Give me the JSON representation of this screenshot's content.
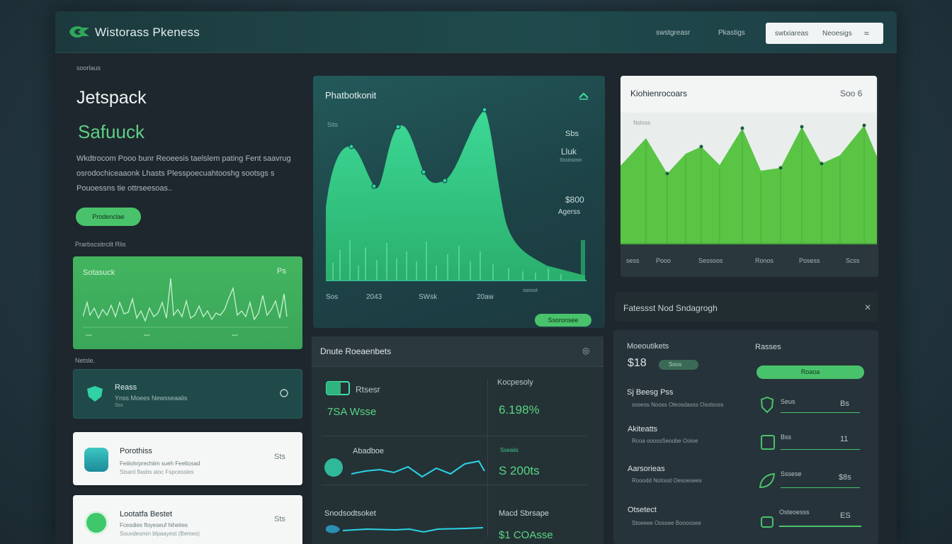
{
  "header": {
    "brand": "Wistorass Pkeness",
    "nav": [
      "swstgreasr",
      "Pkastigs"
    ],
    "search": {
      "left": "swtxiareas",
      "right": "Neoesigs",
      "icon_glyph": "≈"
    }
  },
  "hero": {
    "eyebrow": "soorlaus",
    "title": "Jetspack",
    "subtitle": "Safuuck",
    "paragraph": "Wkdtrocom Pooo bunr Reoeesis taelslem pating Fent saavrug osrodochiceaaonk Lhasts Plesspoecuahtooshg sootsgs s Pouoessns tie ottrseesoas..",
    "button": "Prodenclae"
  },
  "left_cards": {
    "section_label": "Prarbscsitrcilt Rlis",
    "green_card": {
      "title": "Sotasuck",
      "value": "Ps"
    },
    "teal_section_label": "Netsle.",
    "teal_card": {
      "title": "Reass",
      "desc": "Ynss Moees Newsseaalis",
      "sub": "Sss"
    },
    "white1": {
      "title": "Porothiss",
      "desc": "Feiiiohrprechiim sueh Feeltosad",
      "desc2": "Stsanl flasbs aioc Fspcessles",
      "value": "Sts"
    },
    "white2": {
      "title": "Lootatfa Bestet",
      "desc": "Fcesdies floyeseuf hiheties",
      "desc2": "Souvdesmin blpaayest (Bemes)",
      "value": "Sts"
    }
  },
  "main_chart": {
    "title": "Phatbotkonit",
    "y_label": "Sits",
    "right_values": [
      "Sbs",
      "Lluk",
      "Sssissosn",
      "$800",
      "Agerss",
      "ssissst"
    ],
    "x_labels": [
      "Sos",
      "2043",
      "SWsk",
      "20aw"
    ],
    "button": "Ssoronsee"
  },
  "right_chart": {
    "title": "Kiohienrocoars",
    "value": "Soo 6",
    "y_label": "Nstsss",
    "x_labels": [
      "sess",
      "Pooo",
      "Sessoos",
      "Ronos",
      "Posess",
      "Scss"
    ]
  },
  "right_mid": {
    "title": "Fatessst Nod Sndagrogh",
    "icon_glyph": "✕"
  },
  "bottom_mid": {
    "title": "Dnute Roeaenbets",
    "icon_glyph": "◎",
    "row1": {
      "icon_label": "Rtsesr",
      "value": "7SA Wsse",
      "right_label": "Kocpesoly",
      "right_value": "6.198%"
    },
    "row2": {
      "label": "Abadboe",
      "right_label": "Sseaiis",
      "right_value": "S 200ts"
    },
    "row3": {
      "label": "Snodsodtsoket",
      "right_label": "Macd Sbrsape",
      "right_value": "$1 COAsse"
    }
  },
  "bottom_right": {
    "col1_label": "Moeoutikets",
    "col1_value": "$18",
    "col1_pill": "Soos",
    "col2_label": "Rasses",
    "col2_button": "Roaoa",
    "rows": [
      {
        "title": "Sj Beesg Pss",
        "desc": "ssseos Nooss Oleosdasss Osotsoss",
        "icon_label": "Seus",
        "value": "Bs"
      },
      {
        "title": "Akiteatts",
        "desc": "Rcoa ooossSeoobe Ooioe",
        "icon_label": "Bss",
        "value": "11"
      },
      {
        "title": "Aarsorieas",
        "desc": "Rooodd Notood Oesoesees",
        "icon_label": "Sssese",
        "value": "$8s"
      },
      {
        "title": "Otsetect",
        "desc": "Stoeeee Oossee Boooosee",
        "icon_label": "Osteoesss",
        "value": "ES"
      }
    ]
  },
  "colors": {
    "accent_green": "#49c36b",
    "teal": "#2fd2a5",
    "cyan_line": "#2bd3e6"
  }
}
